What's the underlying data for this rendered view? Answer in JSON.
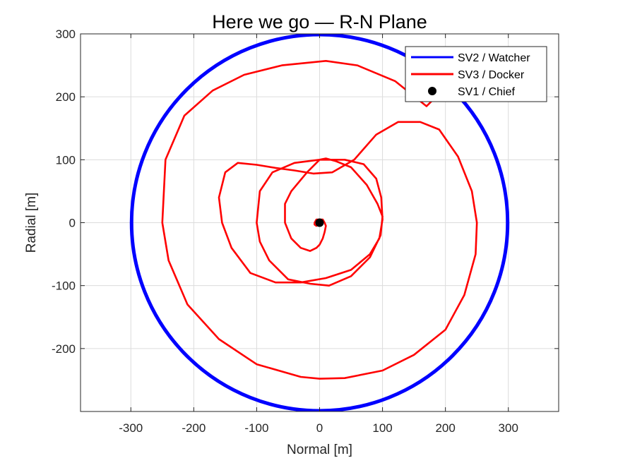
{
  "chart_data": {
    "type": "line",
    "title": "Here we go — R-N Plane",
    "xlabel": "Normal [m]",
    "ylabel": "Radial [m]",
    "xlim": [
      -380,
      380
    ],
    "ylim": [
      -300,
      300
    ],
    "xticks": [
      -300,
      -200,
      -100,
      0,
      100,
      200,
      300
    ],
    "yticks": [
      -200,
      -100,
      0,
      100,
      200,
      300
    ],
    "xtick_labels": [
      "-300",
      "-200",
      "-100",
      "0",
      "100",
      "200",
      "300"
    ],
    "ytick_labels": [
      "-200",
      "-100",
      "0",
      "100",
      "200",
      "300"
    ],
    "grid": true,
    "legend": "top-right",
    "series": [
      {
        "name": "SV2 / Watcher",
        "color": "#0000ff",
        "style": "thick-ring",
        "x": [
          300,
          212,
          0,
          -212,
          -300,
          -212,
          0,
          212,
          300
        ],
        "y": [
          0,
          212,
          300,
          212,
          0,
          -212,
          -300,
          -212,
          0
        ]
      },
      {
        "name": "SV3 / Docker",
        "color": "#ff0000",
        "style": "line",
        "x": [
          200,
          185,
          170,
          120,
          60,
          10,
          -60,
          -120,
          -170,
          -215,
          -245,
          -250,
          -240,
          -210,
          -160,
          -100,
          -30,
          0,
          40,
          100,
          150,
          200,
          230,
          248,
          250,
          242,
          220,
          190,
          160,
          125,
          90,
          55,
          20,
          -10,
          -40,
          -70,
          -100,
          -130,
          -150,
          -160,
          -155,
          -140,
          -110,
          -70,
          -30,
          10,
          50,
          80,
          95,
          100,
          98,
          90,
          70,
          40,
          0,
          -40,
          -75,
          -95,
          -100,
          -95,
          -80,
          -50,
          -15,
          15,
          50,
          80,
          97,
          100,
          92,
          75,
          50,
          25,
          10,
          0,
          -20,
          -45,
          -55,
          -55,
          -45,
          -30,
          -15,
          -5,
          0,
          5,
          8,
          10,
          8,
          5,
          0,
          -5,
          -8,
          -8,
          -5,
          -2,
          0
        ],
        "y": [
          195,
          200,
          185,
          225,
          250,
          257,
          250,
          235,
          210,
          170,
          100,
          0,
          -60,
          -130,
          -185,
          -225,
          -245,
          -248,
          -247,
          -235,
          -210,
          -170,
          -115,
          -50,
          0,
          50,
          105,
          148,
          160,
          160,
          140,
          100,
          80,
          78,
          83,
          87,
          92,
          95,
          80,
          40,
          0,
          -40,
          -80,
          -95,
          -95,
          -88,
          -75,
          -50,
          -25,
          5,
          40,
          70,
          93,
          100,
          100,
          95,
          80,
          50,
          0,
          -30,
          -60,
          -90,
          -97,
          -100,
          -85,
          -55,
          -20,
          10,
          30,
          60,
          88,
          98,
          102,
          100,
          80,
          50,
          30,
          0,
          -25,
          -40,
          -45,
          -40,
          -35,
          -25,
          -15,
          -5,
          0,
          5,
          5,
          5,
          0,
          -3,
          -5,
          -3,
          0
        ]
      },
      {
        "name": "SV1 / Chief",
        "color": "#000000",
        "style": "marker",
        "x": [
          0
        ],
        "y": [
          0
        ]
      }
    ]
  }
}
